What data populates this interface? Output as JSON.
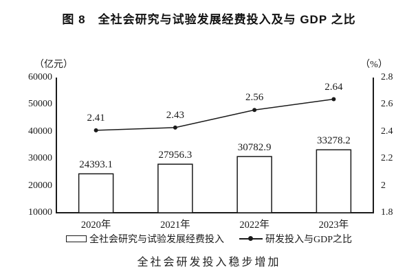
{
  "title": "图 8　全社会研究与试验发展经费投入及与 GDP 之比",
  "caption": "全社会研发投入稳步增加",
  "legend": {
    "bar_label": "全社会研究与试验发展经费投入",
    "line_label": "研发投入与GDP之比"
  },
  "chart_data": {
    "type": "combo",
    "title": "图 8 全社会研究与试验发展经费投入及与 GDP 之比",
    "categories": [
      "2020年",
      "2021年",
      "2022年",
      "2023年"
    ],
    "series": [
      {
        "name": "全社会研究与试验发展经费投入",
        "type": "bar",
        "axis": "left",
        "values": [
          24393.1,
          27956.3,
          30782.9,
          33278.2
        ]
      },
      {
        "name": "研发投入与GDP之比",
        "type": "line",
        "axis": "right",
        "values": [
          2.41,
          2.43,
          2.56,
          2.64
        ]
      }
    ],
    "left_axis": {
      "label": "（亿元）",
      "min": 10000,
      "max": 60000,
      "ticks": [
        60000,
        50000,
        40000,
        30000,
        20000,
        10000
      ]
    },
    "right_axis": {
      "label": "（%）",
      "min": 1.8,
      "max": 2.8,
      "ticks": [
        2.8,
        2.6,
        2.4,
        2.2,
        2,
        1.8
      ]
    },
    "grid": false,
    "legend_position": "bottom",
    "colors": {
      "bar_fill": "#ffffff",
      "stroke": "#1a1a1a",
      "text": "#1a1a1a",
      "background": "#ffffff"
    }
  }
}
